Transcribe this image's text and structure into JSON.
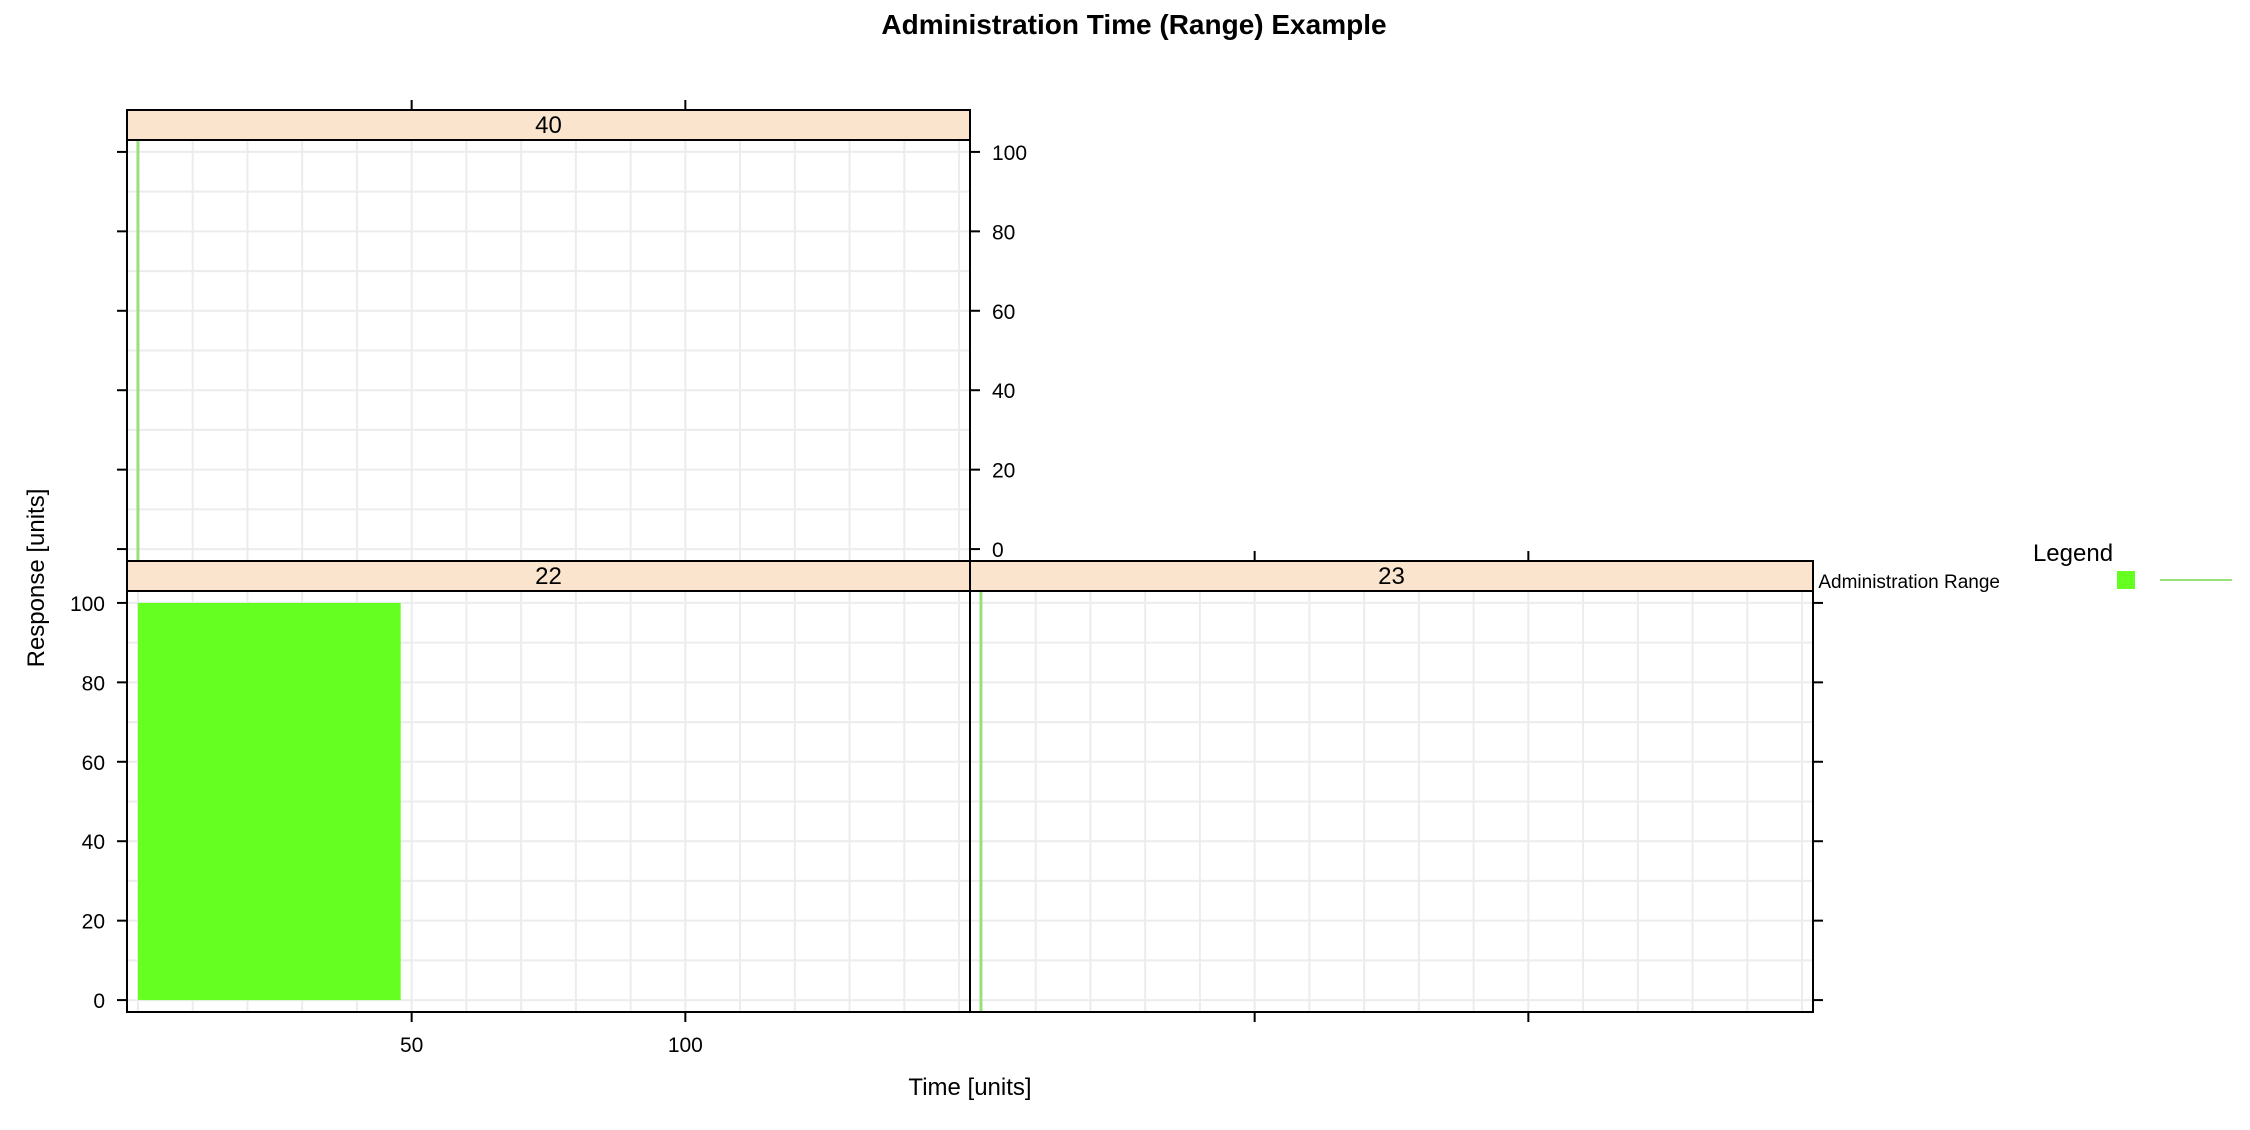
{
  "chart_data": {
    "type": "lattice-bar",
    "title": "Administration Time (Range) Example",
    "xlabel": "Time [units]",
    "ylabel": "Response [units]",
    "xlim": [
      -2,
      152
    ],
    "ylim": [
      -3,
      103
    ],
    "x_ticks": [
      50,
      100
    ],
    "y_ticks": [
      0,
      20,
      40,
      60,
      80,
      100
    ],
    "grid": true,
    "legend": {
      "title": "Legend",
      "position": "right",
      "entries": [
        {
          "label": "Administration Range",
          "fill_color": "#66ff22",
          "line_color": "#99e07a"
        }
      ]
    },
    "colors": {
      "strip": "#fae4cd",
      "fill": "#66ff22",
      "line": "#99e07a",
      "grid": "#ececec"
    },
    "panels": [
      {
        "label": "40",
        "row": 1,
        "col": 0,
        "ranges": [
          {
            "start": 0,
            "end": 0,
            "value": 100
          }
        ]
      },
      {
        "label": "22",
        "row": 0,
        "col": 0,
        "ranges": [
          {
            "start": 0,
            "end": 48,
            "value": 100
          }
        ]
      },
      {
        "label": "23",
        "row": 0,
        "col": 1,
        "ranges": [
          {
            "start": 0,
            "end": 0,
            "value": 100
          }
        ]
      }
    ]
  }
}
